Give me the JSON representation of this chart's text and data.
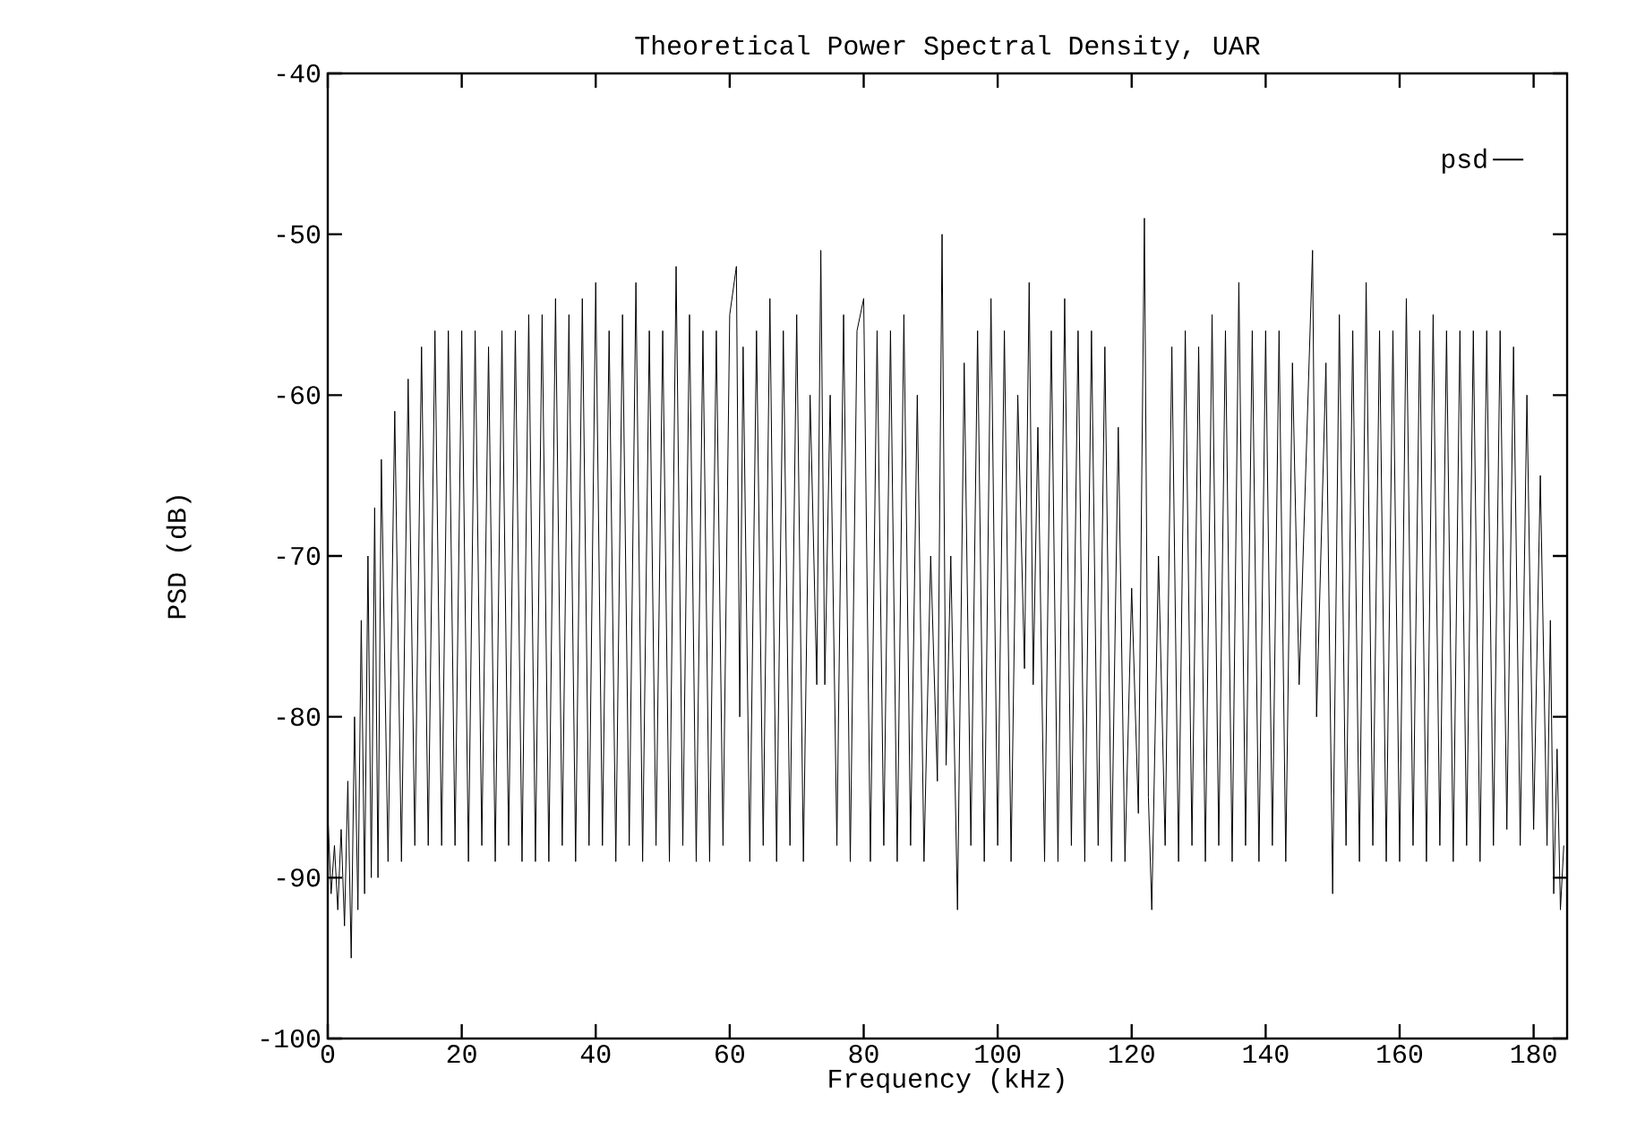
{
  "chart_data": {
    "type": "line",
    "title": "Theoretical Power Spectral Density, UAR",
    "xlabel": "Frequency (kHz)",
    "ylabel": "PSD (dB)",
    "xlim": [
      0,
      185
    ],
    "ylim": [
      -100,
      -40
    ],
    "xticks": [
      0,
      20,
      40,
      60,
      80,
      100,
      120,
      140,
      160,
      180
    ],
    "yticks": [
      -100,
      -90,
      -80,
      -70,
      -60,
      -50,
      -40
    ],
    "legend": "top right",
    "series": [
      {
        "name": "psd",
        "color": "#000000",
        "x": [
          0,
          0.5,
          1,
          1.5,
          2,
          2.5,
          3,
          3.5,
          4,
          4.5,
          5,
          5.5,
          6,
          6.5,
          7,
          7.5,
          8,
          9,
          10,
          11,
          12,
          13,
          14,
          15,
          16,
          17,
          18,
          19,
          20,
          21,
          22,
          23,
          24,
          25,
          26,
          27,
          28,
          29,
          30,
          31,
          32,
          33,
          34,
          35,
          36,
          37,
          38,
          39,
          40,
          41,
          42,
          43,
          44,
          45,
          46,
          47,
          48,
          49,
          50,
          51,
          52,
          53,
          54,
          55,
          56,
          57,
          58,
          59,
          60,
          61,
          61.5,
          62,
          63,
          64,
          65,
          66,
          67,
          68,
          69,
          70,
          71,
          72,
          73,
          73.6,
          74.2,
          75,
          76,
          77,
          78,
          79,
          80,
          81,
          82,
          83,
          84,
          85,
          86,
          87,
          88,
          89,
          90,
          91,
          91.7,
          92.3,
          93,
          94,
          95,
          96,
          97,
          98,
          99,
          100,
          101,
          102,
          103,
          104,
          104.7,
          105.3,
          106,
          107,
          108,
          109,
          110,
          111,
          112,
          113,
          114,
          115,
          116,
          117,
          118,
          119,
          120,
          121,
          121.9,
          122.5,
          123,
          124,
          125,
          126,
          127,
          128,
          129,
          130,
          131,
          132,
          133,
          134,
          135,
          136,
          137,
          138,
          139,
          140,
          141,
          142,
          143,
          144,
          145,
          147,
          147.6,
          149,
          150,
          151,
          152,
          153,
          154,
          155,
          156,
          157,
          158,
          159,
          160,
          161,
          162,
          163,
          164,
          165,
          166,
          167,
          168,
          169,
          170,
          171,
          172,
          173,
          174,
          175,
          176,
          177,
          178,
          179,
          180,
          181,
          182,
          182.5,
          183,
          183.5,
          184,
          184.5
        ],
        "values": [
          -86,
          -91,
          -88,
          -92,
          -87,
          -93,
          -84,
          -95,
          -80,
          -92,
          -74,
          -91,
          -70,
          -90,
          -67,
          -90,
          -64,
          -89,
          -61,
          -89,
          -59,
          -88,
          -57,
          -88,
          -56,
          -88,
          -56,
          -88,
          -56,
          -89,
          -56,
          -88,
          -57,
          -89,
          -56,
          -88,
          -56,
          -89,
          -55,
          -89,
          -55,
          -89,
          -54,
          -88,
          -55,
          -89,
          -54,
          -88,
          -53,
          -88,
          -56,
          -89,
          -55,
          -88,
          -53,
          -89,
          -56,
          -88,
          -56,
          -89,
          -52,
          -88,
          -55,
          -89,
          -56,
          -89,
          -56,
          -88,
          -55,
          -52,
          -80,
          -57,
          -89,
          -56,
          -88,
          -54,
          -89,
          -56,
          -88,
          -55,
          -89,
          -60,
          -78,
          -51,
          -78,
          -60,
          -88,
          -55,
          -89,
          -56,
          -54,
          -89,
          -56,
          -88,
          -56,
          -89,
          -55,
          -88,
          -60,
          -89,
          -70,
          -84,
          -50,
          -83,
          -70,
          -92,
          -58,
          -88,
          -56,
          -89,
          -54,
          -88,
          -56,
          -89,
          -60,
          -77,
          -53,
          -78,
          -62,
          -89,
          -56,
          -89,
          -54,
          -88,
          -56,
          -89,
          -56,
          -88,
          -57,
          -89,
          -62,
          -89,
          -72,
          -86,
          -49,
          -85,
          -92,
          -70,
          -88,
          -57,
          -89,
          -56,
          -88,
          -57,
          -89,
          -55,
          -88,
          -56,
          -89,
          -53,
          -88,
          -56,
          -89,
          -56,
          -88,
          -56,
          -89,
          -58,
          -78,
          -51,
          -80,
          -58,
          -91,
          -55,
          -88,
          -56,
          -89,
          -53,
          -88,
          -56,
          -89,
          -56,
          -89,
          -54,
          -88,
          -56,
          -89,
          -55,
          -88,
          -56,
          -89,
          -56,
          -88,
          -56,
          -89,
          -56,
          -88,
          -56,
          -87,
          -57,
          -88,
          -60,
          -87,
          -65,
          -88,
          -74,
          -91,
          -82,
          -92,
          -88
        ]
      }
    ]
  }
}
